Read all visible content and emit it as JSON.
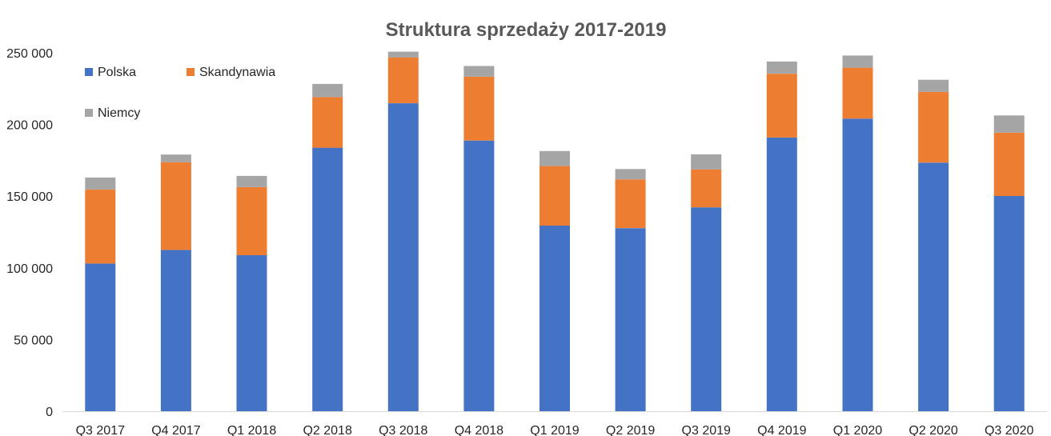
{
  "chart_data": {
    "type": "bar",
    "stacked": true,
    "title": "Struktura sprzedaży 2017-2019",
    "xlabel": "",
    "ylabel": "",
    "ylim": [
      0,
      250000
    ],
    "yticks": [
      0,
      50000,
      100000,
      150000,
      200000,
      250000
    ],
    "ytick_labels": [
      "0",
      "50 000",
      "100 000",
      "150 000",
      "200 000",
      "250 000"
    ],
    "grid": false,
    "legend_position": "top-left",
    "categories": [
      "Q3 2017",
      "Q4 2017",
      "Q1 2018",
      "Q2 2018",
      "Q3 2018",
      "Q4 2018",
      "Q1 2019",
      "Q2 2019",
      "Q3 2019",
      "Q4 2019",
      "Q1 2020",
      "Q2 2020",
      "Q3 2020"
    ],
    "series": [
      {
        "name": "Polska",
        "color": "#4472c4",
        "values": [
          103000,
          112500,
          108800,
          183800,
          214800,
          188800,
          129500,
          127700,
          142200,
          190900,
          204100,
          173400,
          150100
        ]
      },
      {
        "name": "Skandynawia",
        "color": "#ed7d31",
        "values": [
          51700,
          61200,
          47500,
          35300,
          32000,
          44500,
          41500,
          34000,
          26500,
          44500,
          35500,
          49300,
          44200
        ]
      },
      {
        "name": "Niemcy",
        "color": "#a5a5a5",
        "values": [
          8300,
          5300,
          7800,
          9200,
          4000,
          7500,
          10500,
          7200,
          10500,
          8500,
          8500,
          8500,
          12000
        ]
      }
    ]
  }
}
